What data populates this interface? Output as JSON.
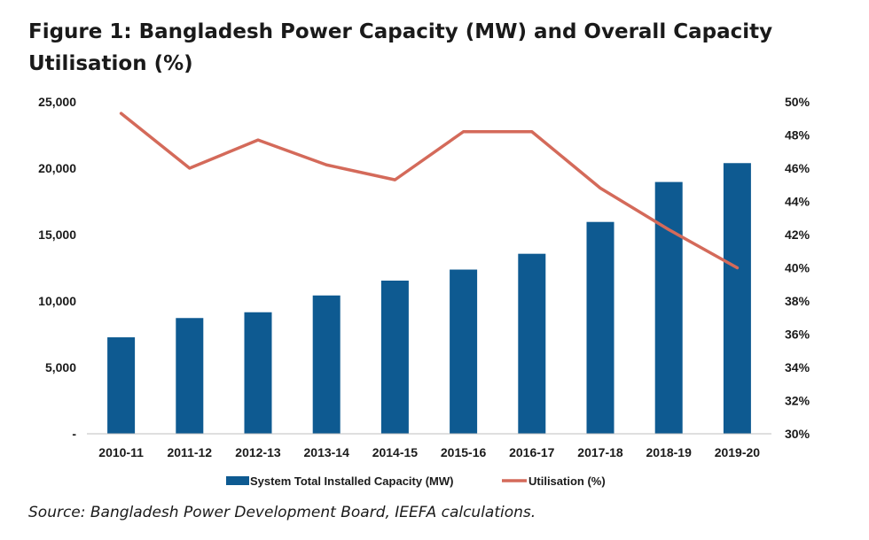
{
  "title": "Figure 1: Bangladesh Power Capacity (MW) and Overall Capacity Utilisation (%)",
  "source": "Source: Bangladesh Power Development Board, IEEFA calculations.",
  "chart_data": {
    "type": "bar",
    "categories": [
      "2010-11",
      "2011-12",
      "2012-13",
      "2013-14",
      "2014-15",
      "2015-16",
      "2016-17",
      "2017-18",
      "2018-19",
      "2019-20"
    ],
    "series": [
      {
        "name": "System Total Installed Capacity (MW)",
        "type": "bar",
        "axis": "left",
        "color": "#0e5a91",
        "values": [
          7264,
          8716,
          9151,
          10416,
          11534,
          12365,
          13555,
          15953,
          18961,
          20383
        ]
      },
      {
        "name": "Utilisation (%)",
        "type": "line",
        "axis": "right",
        "color": "#d46a5a",
        "values": [
          49.3,
          46.0,
          47.7,
          46.2,
          45.3,
          48.2,
          48.2,
          44.8,
          42.3,
          40.0
        ]
      }
    ],
    "y_left": {
      "ylim": [
        0,
        25000
      ],
      "ticks": [
        0,
        5000,
        10000,
        15000,
        20000,
        25000
      ],
      "tick_labels": [
        "-",
        "5,000",
        "10,000",
        "15,000",
        "20,000",
        "25,000"
      ]
    },
    "y_right": {
      "ylim": [
        30,
        50
      ],
      "ticks": [
        30,
        32,
        34,
        36,
        38,
        40,
        42,
        44,
        46,
        48,
        50
      ],
      "tick_labels": [
        "30%",
        "32%",
        "34%",
        "36%",
        "38%",
        "40%",
        "42%",
        "44%",
        "46%",
        "48%",
        "50%"
      ]
    },
    "grid": false,
    "legend_position": "bottom"
  }
}
